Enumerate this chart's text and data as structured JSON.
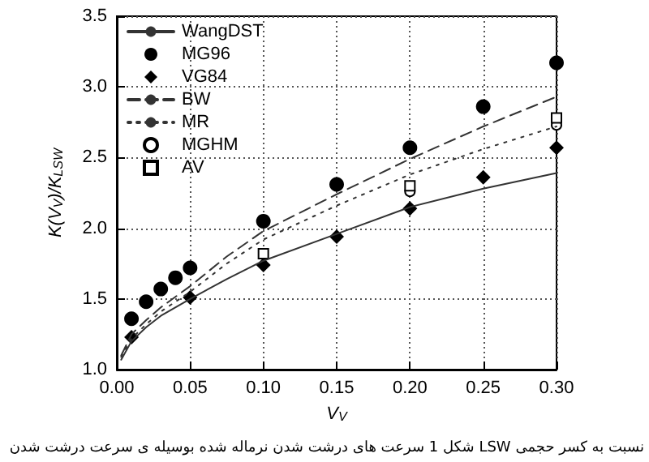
{
  "chart_data": {
    "type": "line",
    "xlabel": "V$_{V}$",
    "ylabel": "K(V$_{V}$)/K$_{LSW}$",
    "xlim": [
      0,
      0.3
    ],
    "xticks": [
      {
        "value": 0,
        "label": "0.00"
      },
      0.05,
      {
        "value": 0.1,
        "label": "0.10"
      },
      0.15,
      {
        "value": 0.2,
        "label": "0.20"
      },
      0.25,
      {
        "value": 0.3,
        "label": "0.30"
      }
    ],
    "ylim": [
      1,
      3.5
    ],
    "yticks": [
      {
        "value": 1,
        "label": "1.0"
      },
      1.5,
      {
        "value": 2,
        "label": "2.0"
      },
      2.5,
      {
        "value": 3,
        "label": "3.0"
      },
      3.5
    ],
    "grid": true,
    "legend": "top left",
    "series": [
      {
        "name": "WangDST",
        "line_style": "solid",
        "marker": "none",
        "color": "#333333",
        "x": [
          0.003,
          0.01,
          0.02,
          0.03,
          0.05,
          0.075,
          0.1,
          0.15,
          0.2,
          0.25,
          0.3
        ],
        "values": [
          1.07,
          1.2,
          1.3,
          1.38,
          1.5,
          1.64,
          1.77,
          1.96,
          2.15,
          2.28,
          2.39
        ]
      },
      {
        "name": "MG96",
        "type": "scatter",
        "marker": "circle",
        "color": "#000000",
        "x": [
          0.01,
          0.02,
          0.03,
          0.04,
          0.05,
          0.1,
          0.15,
          0.2,
          0.25,
          0.3
        ],
        "values": [
          1.36,
          1.48,
          1.57,
          1.65,
          1.72,
          2.05,
          2.31,
          2.57,
          2.86,
          3.17
        ]
      },
      {
        "name": "VG84",
        "type": "scatter",
        "marker": "diamond",
        "color": "#000000",
        "x": [
          0.01,
          0.05,
          0.1,
          0.15,
          0.2,
          0.25,
          0.3
        ],
        "values": [
          1.23,
          1.51,
          1.74,
          1.94,
          2.14,
          2.36,
          2.57
        ]
      },
      {
        "name": "BW",
        "line_style": "dashed",
        "marker": "none",
        "color": "#333333",
        "x": [
          0.003,
          0.01,
          0.02,
          0.03,
          0.05,
          0.075,
          0.1,
          0.15,
          0.2,
          0.25,
          0.3
        ],
        "values": [
          1.1,
          1.25,
          1.35,
          1.44,
          1.59,
          1.8,
          1.98,
          2.24,
          2.49,
          2.72,
          2.93
        ]
      },
      {
        "name": "MR",
        "line_style": "dotted",
        "marker": "none",
        "color": "#333333",
        "x": [
          0.003,
          0.01,
          0.02,
          0.03,
          0.05,
          0.075,
          0.1,
          0.15,
          0.2,
          0.25,
          0.3
        ],
        "values": [
          1.09,
          1.22,
          1.32,
          1.41,
          1.55,
          1.75,
          1.92,
          2.16,
          2.38,
          2.56,
          2.72
        ]
      },
      {
        "name": "MGHM",
        "type": "scatter",
        "marker": "circle",
        "color": "#ffffff",
        "x": [
          0.2,
          0.3
        ],
        "values": [
          2.26,
          2.73
        ]
      },
      {
        "name": "AV",
        "type": "scatter",
        "marker": "square",
        "color": "#ffffff",
        "x": [
          0.1,
          0.2,
          0.3
        ],
        "values": [
          1.82,
          2.3,
          2.78
        ]
      }
    ],
    "annotations": [
      "شکل 1 سرعت های درشت شدن نرماله شده بوسیله ی سرعت درشت شدن LSW نسبت به کسر حجمی"
    ]
  }
}
